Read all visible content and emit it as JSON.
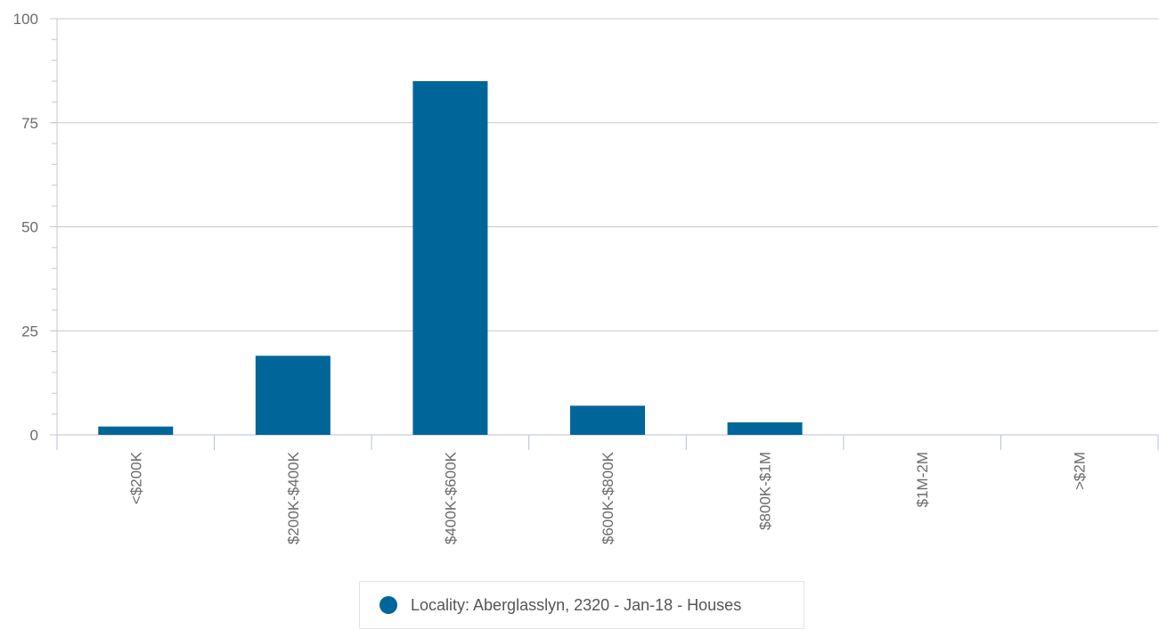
{
  "chart_data": {
    "type": "bar",
    "categories": [
      "<$200K",
      "$200K-$400K",
      "$400K-$600K",
      "$600K-$800K",
      "$800K-$1M",
      "$1M-2M",
      ">$2M"
    ],
    "series": [
      {
        "name": "Locality: Aberglasslyn, 2320 - Jan-18 - Houses",
        "values": [
          2,
          19,
          85,
          7,
          3,
          0,
          0
        ]
      }
    ],
    "ylim": [
      0,
      100
    ],
    "yticks": [
      "0",
      "25",
      "50",
      "75",
      "100"
    ],
    "grid": true,
    "legend_position": "bottom",
    "colors": {
      "bar": "#006699",
      "grid": "#c8c8c8",
      "axis": "#b8bce0"
    }
  }
}
